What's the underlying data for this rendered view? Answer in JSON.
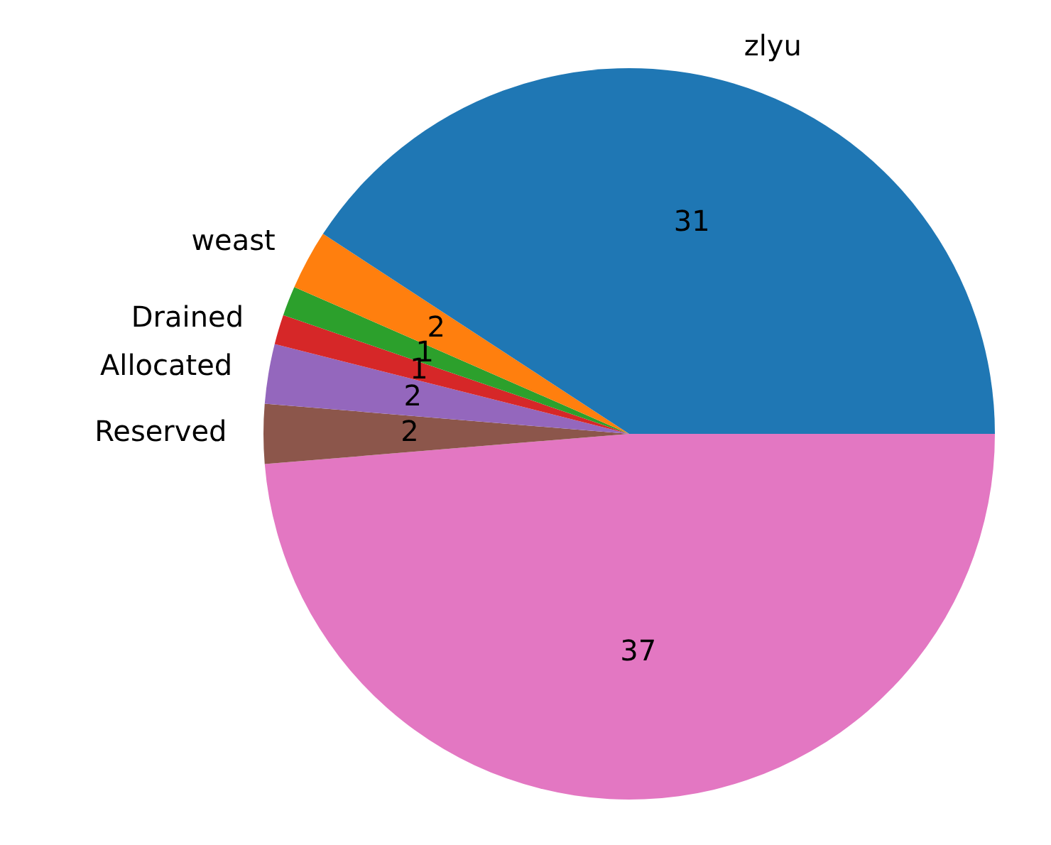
{
  "chart_data": {
    "type": "pie",
    "categories": [
      "zlyu",
      "weast",
      null,
      "Drained",
      "Allocated",
      "Reserved",
      null
    ],
    "values": [
      31,
      2,
      1,
      1,
      2,
      2,
      37
    ],
    "colors": [
      "#1f77b4",
      "#ff7f0e",
      "#2ca02c",
      "#d62728",
      "#9467bd",
      "#8c564b",
      "#e377c2"
    ],
    "data_labels": true,
    "legend": false
  }
}
